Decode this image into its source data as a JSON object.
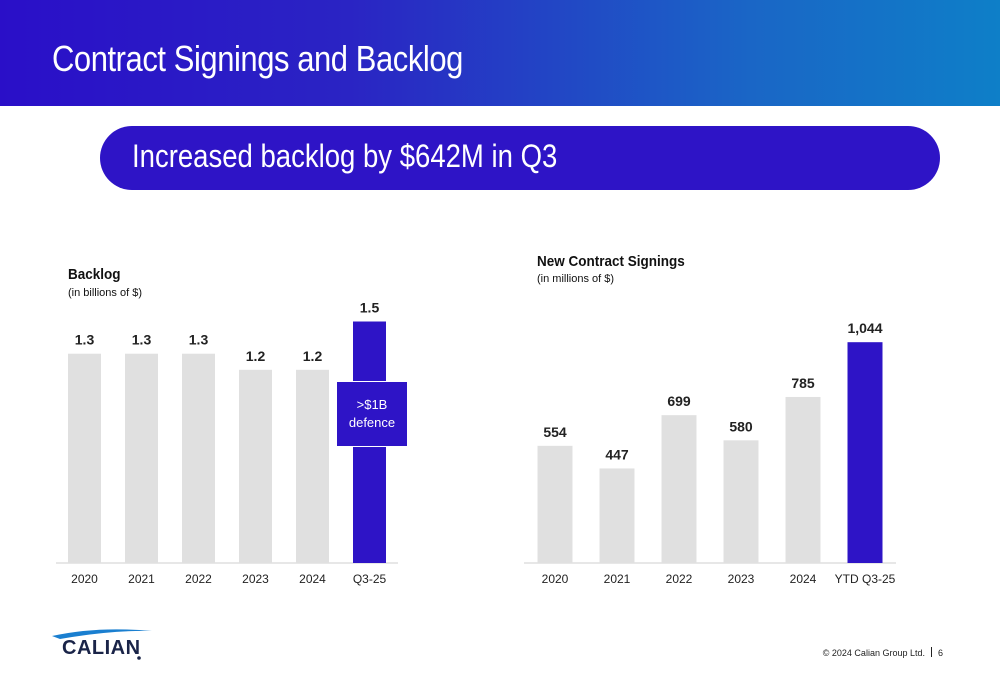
{
  "header": {
    "title": "Contract Signings and Backlog"
  },
  "banner": {
    "text": "Increased backlog by $642M in Q3"
  },
  "colors": {
    "header_start": "#2a0fc8",
    "header_end": "#0e7fc8",
    "accent": "#2e14c6",
    "bar_gray": "#e0e0e0"
  },
  "chart_data": [
    {
      "type": "bar",
      "title": "Backlog",
      "subtitle": "(in billions of $)",
      "categories": [
        "2020",
        "2021",
        "2022",
        "2023",
        "2024",
        "Q3-25"
      ],
      "values": [
        1.3,
        1.3,
        1.3,
        1.2,
        1.2,
        1.5
      ],
      "value_labels": [
        "1.3",
        "1.3",
        "1.3",
        "1.2",
        "1.2",
        "1.5"
      ],
      "highlight_index": 5,
      "annotation": ">$1B defence",
      "annotation_lines": [
        ">$1B",
        "defence"
      ],
      "grid": false
    },
    {
      "type": "bar",
      "title": "New Contract Signings",
      "subtitle": "(in millions of $)",
      "categories": [
        "2020",
        "2021",
        "2022",
        "2023",
        "2024",
        "YTD Q3-25"
      ],
      "values": [
        554,
        447,
        699,
        580,
        785,
        1044
      ],
      "value_labels": [
        "554",
        "447",
        "699",
        "580",
        "785",
        "1,044"
      ],
      "highlight_index": 5,
      "grid": false
    }
  ],
  "footer": {
    "logo_text": "CALIAN",
    "copyright": "© 2024 Calian Group Ltd.",
    "page_number": "6"
  }
}
